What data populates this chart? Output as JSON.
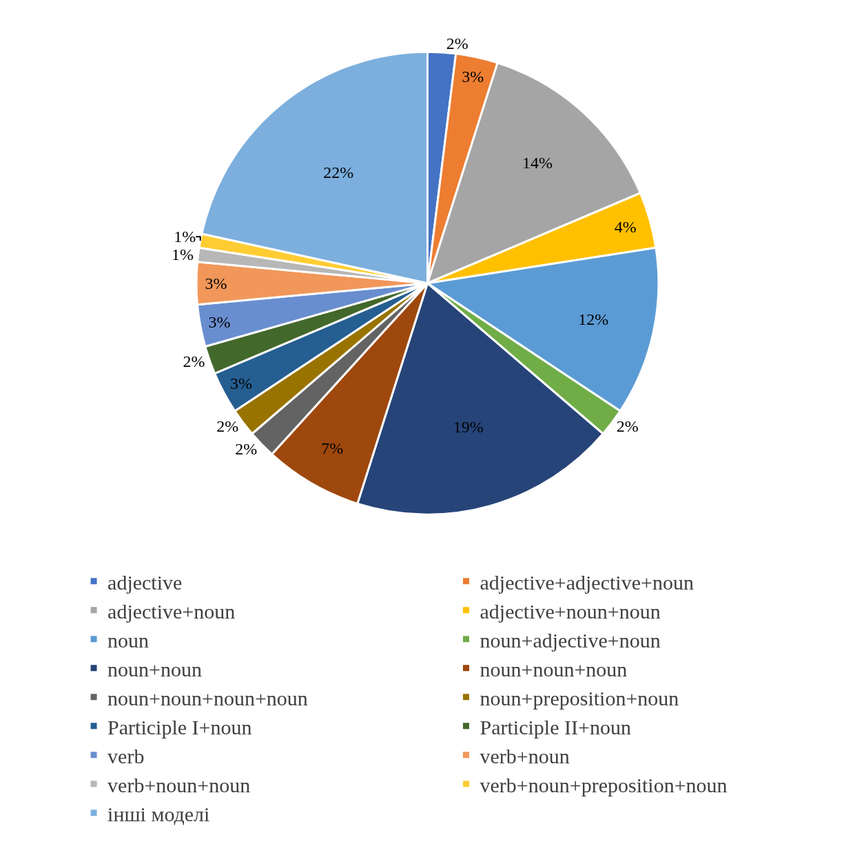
{
  "chart_data": {
    "type": "pie",
    "legend": "bottom",
    "categories": [
      "adjective",
      "adjective+adjective+noun",
      "adjective+noun",
      "adjective+noun+noun",
      "noun",
      "noun+adjective+noun",
      "noun+noun",
      "noun+noun+noun",
      "noun+noun+noun+noun",
      "noun+preposition+noun",
      "Participle I+noun",
      "Participle II+noun",
      "verb",
      "verb+noun",
      "verb+noun+noun",
      "verb+noun+preposition+noun",
      "інші моделі"
    ],
    "values": [
      2,
      3,
      14,
      4,
      12,
      2,
      19,
      7,
      2,
      2,
      3,
      2,
      3,
      3,
      1,
      1,
      22
    ],
    "value_labels": [
      "2%",
      "3%",
      "14%",
      "4%",
      "12%",
      "2%",
      "19%",
      "7%",
      "2%",
      "2%",
      "3%",
      "2%",
      "3%",
      "3%",
      "1%",
      "1%",
      "22%"
    ],
    "colors": [
      "#4472c4",
      "#ed7d31",
      "#a5a5a5",
      "#ffc000",
      "#5b9bd5",
      "#70ad47",
      "#264478",
      "#9e480e",
      "#636363",
      "#997300",
      "#255e91",
      "#43682b",
      "#698ed0",
      "#f1975a",
      "#b7b7b7",
      "#ffcd33",
      "#7cafdd"
    ]
  }
}
